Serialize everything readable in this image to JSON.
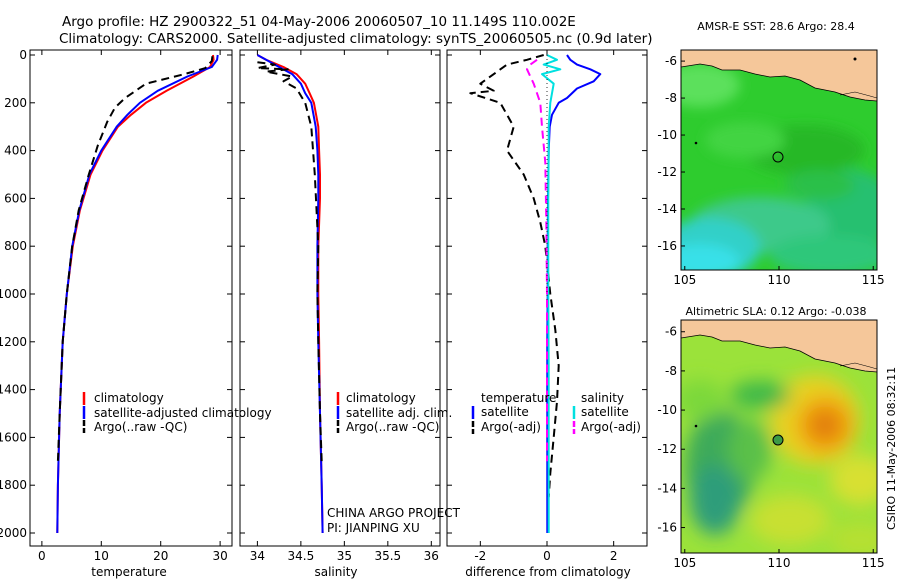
{
  "header": {
    "line1": "Argo profile: HZ 2900322_51 04-May-2006 20060507_10 11.149S 110.002E",
    "line2": "Climatology: CARS2000. Satellite-adjusted climatology: synTS_20060505.nc (0.9d later)"
  },
  "side_text": "CSIRO 11-May-2006 08:32:11",
  "project_note": {
    "line1": "CHINA ARGO PROJECT",
    "line2": "PI: JIANPING XU"
  },
  "colors": {
    "climatology": "#ff0000",
    "satellite": "#0000ff",
    "argo": "#000000",
    "salinity_satellite": "#00e0e0",
    "salinity_argo": "#ff00ff",
    "land": "#f5c79a"
  },
  "chart_data": [
    {
      "type": "line",
      "id": "temperature",
      "xlabel": "temperature",
      "ylabel": "",
      "xlim": [
        -2,
        32
      ],
      "ylim": [
        2000,
        0
      ],
      "xticks": [
        0,
        10,
        20,
        30
      ],
      "yticks": [
        0,
        200,
        400,
        600,
        800,
        1000,
        1200,
        1400,
        1600,
        1800,
        2000
      ],
      "legend": [
        "climatology",
        "satellite-adjusted climatology",
        "Argo(..raw -QC)"
      ],
      "series": [
        {
          "name": "climatology",
          "color": "#ff0000",
          "dash": "",
          "x": [
            28.8,
            28.9,
            28.3,
            25.5,
            21.0,
            17.5,
            15.0,
            12.8,
            10.2,
            8.2,
            6.4,
            5.2,
            4.2,
            3.5,
            3.0,
            2.7,
            2.6
          ],
          "y": [
            0,
            20,
            50,
            90,
            150,
            200,
            250,
            300,
            400,
            500,
            650,
            800,
            1000,
            1200,
            1500,
            1800,
            2000
          ]
        },
        {
          "name": "satellite-adjusted climatology",
          "color": "#0000ff",
          "dash": "",
          "x": [
            29.6,
            29.5,
            28.6,
            24.5,
            19.5,
            16.5,
            14.4,
            12.6,
            10.0,
            8.0,
            6.3,
            5.1,
            4.2,
            3.5,
            3.0,
            2.7,
            2.6
          ],
          "y": [
            0,
            20,
            50,
            90,
            150,
            200,
            250,
            300,
            400,
            500,
            650,
            800,
            1000,
            1200,
            1500,
            1800,
            2000
          ]
        },
        {
          "name": "Argo(..raw -QC)",
          "color": "#000000",
          "dash": "8,5",
          "x": [
            28.7,
            28.6,
            27.5,
            24.0,
            17.5,
            14.0,
            12.3,
            11.0,
            9.4,
            7.9,
            6.2,
            5.1,
            4.2,
            3.5,
            3.0,
            2.7
          ],
          "y": [
            5,
            25,
            55,
            80,
            120,
            180,
            220,
            280,
            380,
            500,
            650,
            800,
            1000,
            1200,
            1500,
            1700
          ]
        }
      ]
    },
    {
      "type": "line",
      "id": "salinity",
      "xlabel": "salinity",
      "ylabel": "",
      "xlim": [
        33.8,
        36.1
      ],
      "ylim": [
        2000,
        0
      ],
      "xticks": [
        34,
        34.5,
        35,
        35.5,
        36
      ],
      "legend": [
        "climatology",
        "satellite adj. clim.",
        "Argo(..raw -QC)"
      ],
      "series": [
        {
          "name": "climatology",
          "color": "#ff0000",
          "dash": "",
          "x": [
            34.0,
            34.1,
            34.3,
            34.45,
            34.55,
            34.6,
            34.65,
            34.7,
            34.71,
            34.72,
            34.72,
            34.7,
            34.7,
            34.71,
            34.72,
            34.74,
            34.75
          ],
          "y": [
            0,
            20,
            50,
            80,
            120,
            160,
            200,
            300,
            400,
            500,
            600,
            800,
            1000,
            1200,
            1500,
            1800,
            2000
          ]
        },
        {
          "name": "satellite adj. clim.",
          "color": "#0000ff",
          "dash": "",
          "x": [
            34.0,
            34.1,
            34.25,
            34.4,
            34.5,
            34.55,
            34.62,
            34.67,
            34.69,
            34.7,
            34.7,
            34.69,
            34.69,
            34.7,
            34.72,
            34.74,
            34.75
          ],
          "y": [
            0,
            20,
            50,
            80,
            120,
            160,
            200,
            300,
            400,
            500,
            600,
            800,
            1000,
            1200,
            1500,
            1800,
            2000
          ]
        },
        {
          "name": "Argo(..raw -QC)",
          "color": "#000000",
          "dash": "8,5",
          "x": [
            34.0,
            34.2,
            34.0,
            34.35,
            34.1,
            34.4,
            34.3,
            34.45,
            34.55,
            34.62,
            34.66,
            34.7,
            34.69,
            34.7,
            34.72,
            34.74
          ],
          "y": [
            30,
            40,
            55,
            60,
            70,
            90,
            110,
            140,
            200,
            300,
            500,
            800,
            1000,
            1200,
            1500,
            1700
          ]
        }
      ]
    },
    {
      "type": "line",
      "id": "difference",
      "xlabel": "difference from climatology",
      "ylabel": "",
      "xlim": [
        -3,
        3
      ],
      "ylim": [
        2000,
        0
      ],
      "xticks": [
        -2,
        0,
        2
      ],
      "legend_left_title": "temperature",
      "legend_right_title": "salinity",
      "legend_left": [
        "satellite",
        "Argo(-adj)"
      ],
      "legend_right": [
        "satellite",
        "Argo(-adj)"
      ],
      "series": [
        {
          "name": "temperature satellite",
          "color": "#0000ff",
          "dash": "",
          "x": [
            0.6,
            0.7,
            0.9,
            1.3,
            1.6,
            1.4,
            0.9,
            0.6,
            0.35,
            0.15,
            0.08,
            0.05,
            0.03,
            0.02,
            0.02,
            0.01,
            0.01,
            0.01,
            0.01
          ],
          "y": [
            0,
            20,
            40,
            60,
            80,
            110,
            140,
            180,
            200,
            250,
            300,
            400,
            600,
            800,
            1000,
            1200,
            1500,
            1800,
            2000
          ]
        },
        {
          "name": "temperature Argo(-adj)",
          "color": "#000000",
          "dash": "8,5",
          "x": [
            -0.1,
            -0.6,
            -1.2,
            -2.0,
            -1.6,
            -2.3,
            -1.4,
            -1.0,
            -1.2,
            -0.7,
            -0.4,
            -0.2,
            -0.05,
            0.1,
            0.25,
            0.35,
            0.3,
            0.2,
            0.1,
            0.05
          ],
          "y": [
            0,
            20,
            40,
            120,
            150,
            160,
            200,
            300,
            400,
            500,
            600,
            700,
            800,
            1000,
            1150,
            1300,
            1450,
            1600,
            1750,
            1850
          ]
        },
        {
          "name": "salinity satellite",
          "color": "#00e0e0",
          "dash": "",
          "x": [
            0.0,
            0.3,
            -0.1,
            0.4,
            -0.15,
            0.2,
            0.1,
            0.05,
            0.05,
            0.04,
            0.04,
            0.04,
            0.05,
            0.05,
            0.05
          ],
          "y": [
            0,
            20,
            40,
            60,
            80,
            120,
            200,
            300,
            400,
            600,
            800,
            1000,
            1300,
            1600,
            2000
          ]
        },
        {
          "name": "salinity Argo(-adj)",
          "color": "#ff00ff",
          "dash": "8,5",
          "x": [
            -0.3,
            -0.5,
            -0.6,
            -0.4,
            -0.2,
            -0.15,
            -0.05,
            -0.02,
            0.0,
            0.0,
            0.0
          ],
          "y": [
            20,
            40,
            60,
            120,
            200,
            300,
            450,
            700,
            1000,
            1400,
            1700
          ]
        }
      ]
    },
    {
      "type": "heatmap",
      "id": "sst-map",
      "title": "AMSR-E SST: 28.6 Argo: 28.4",
      "xlim": [
        104.8,
        115.2
      ],
      "ylim": [
        -17.3,
        -5.4
      ],
      "xticks": [
        105,
        110,
        115
      ],
      "yticks": [
        -6,
        -8,
        -10,
        -12,
        -14,
        -16
      ],
      "argo_position": [
        110.002,
        -11.149
      ]
    },
    {
      "type": "heatmap",
      "id": "sla-map",
      "title": "Altimetric SLA: 0.12 Argo: -0.038",
      "xlim": [
        104.8,
        115.2
      ],
      "ylim": [
        -17.3,
        -5.4
      ],
      "xticks": [
        105,
        110,
        115
      ],
      "yticks": [
        -6,
        -8,
        -10,
        -12,
        -14,
        -16
      ],
      "argo_position": [
        110.002,
        -11.149
      ]
    }
  ]
}
